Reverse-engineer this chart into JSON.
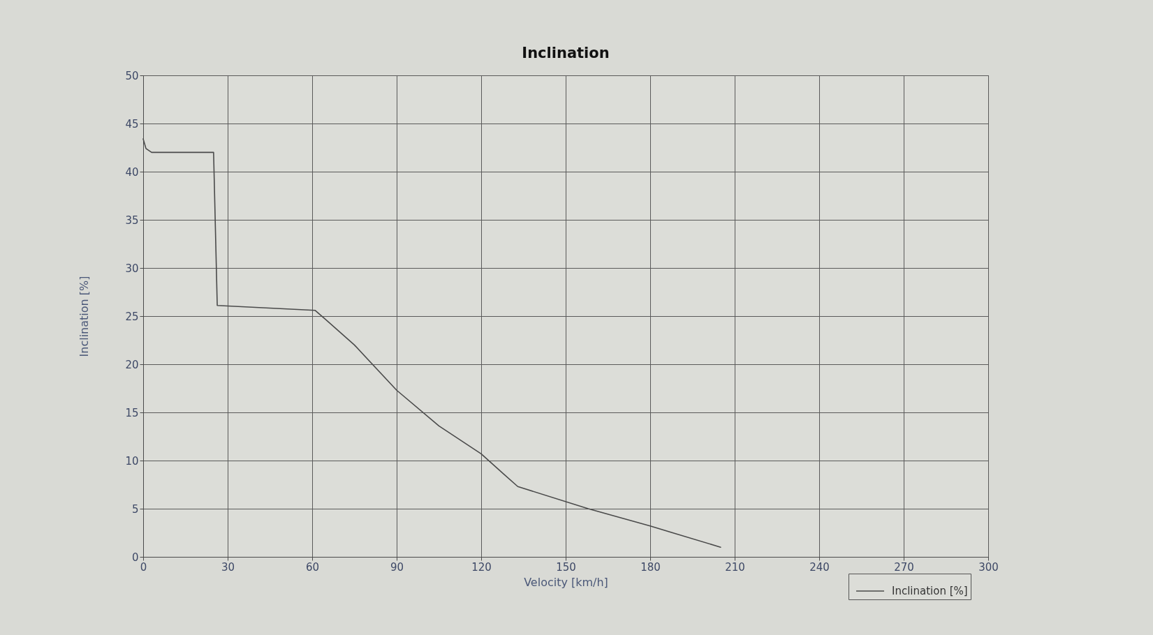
{
  "chart_data": {
    "type": "line",
    "title": "Inclination",
    "xlabel": "Velocity [km/h]",
    "ylabel": "Inclination [%]",
    "x": [
      0,
      1,
      3,
      25,
      26.3,
      61,
      65,
      75,
      90,
      105,
      120,
      128,
      133,
      158,
      180,
      205
    ],
    "series": [
      {
        "name": "Inclination [%]",
        "color": "#4a4a4a",
        "values": [
          43.4,
          42.4,
          42,
          42,
          26.1,
          25.6,
          24.6,
          22,
          17.3,
          13.6,
          10.7,
          8.6,
          7.3,
          5,
          3.2,
          1
        ]
      }
    ],
    "xlim": [
      0,
      300
    ],
    "ylim": [
      0,
      50
    ],
    "xticks": [
      0,
      30,
      60,
      90,
      120,
      150,
      180,
      210,
      240,
      270,
      300
    ],
    "yticks": [
      0,
      5,
      10,
      15,
      20,
      25,
      30,
      35,
      40,
      45,
      50
    ],
    "grid": true,
    "legend": "bottom right",
    "line_style": "solid"
  }
}
